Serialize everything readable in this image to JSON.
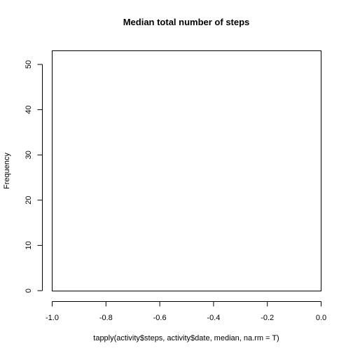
{
  "chart_data": {
    "type": "bar",
    "title": "Median total number of steps",
    "xlabel": "tapply(activity$steps, activity$date, median, na.rm = T)",
    "ylabel": "Frequency",
    "xlim": [
      -1.0,
      0.0
    ],
    "ylim": [
      0,
      53
    ],
    "x_ticks": [
      -1.0,
      -0.8,
      -0.6,
      -0.4,
      -0.2,
      0.0
    ],
    "x_tick_labels": [
      "-1.0",
      "-0.8",
      "-0.6",
      "-0.4",
      "-0.2",
      "0.0"
    ],
    "y_ticks": [
      0,
      10,
      20,
      30,
      40,
      50
    ],
    "y_tick_labels": [
      "0",
      "10",
      "20",
      "30",
      "40",
      "50"
    ],
    "categories": [],
    "values": [],
    "grid": false,
    "legend": "none"
  }
}
